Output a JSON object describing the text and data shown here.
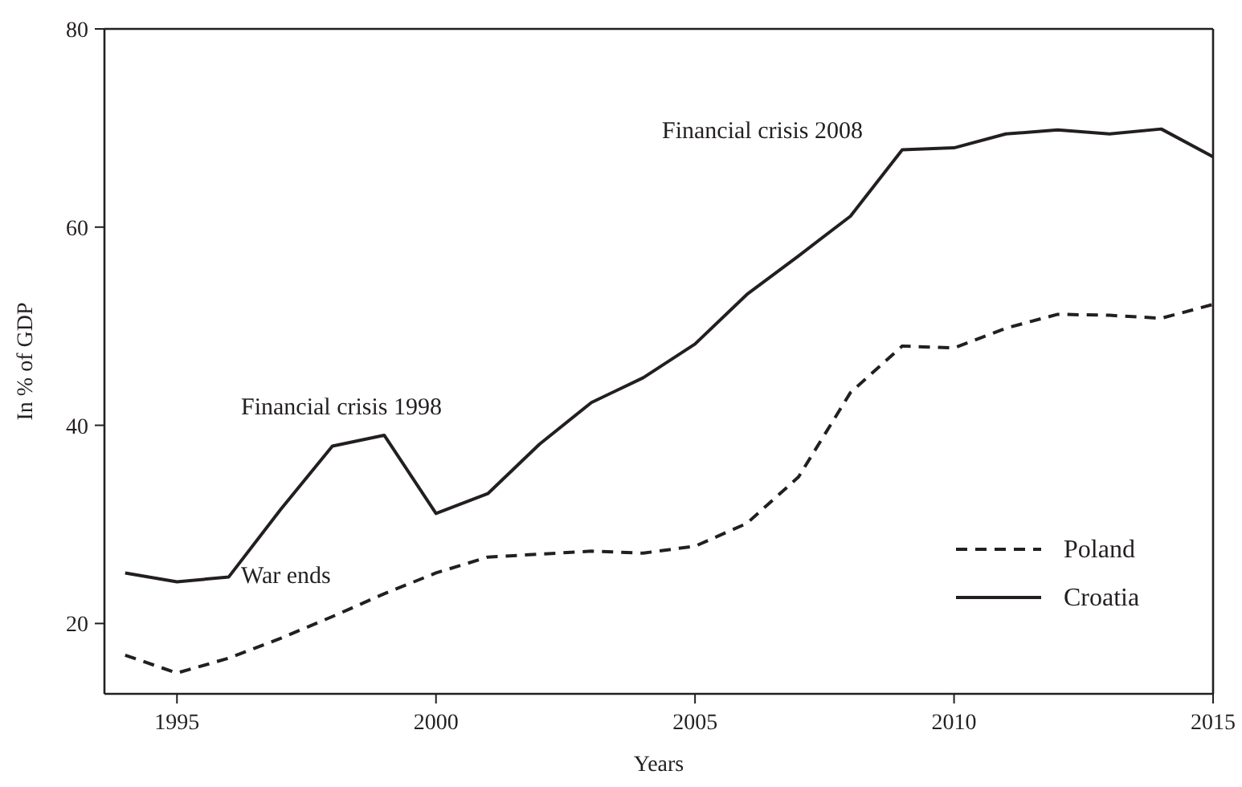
{
  "chart_data": {
    "type": "line",
    "xlabel": "Years",
    "ylabel": "In % of GDP",
    "x": [
      1994,
      1995,
      1996,
      1997,
      1998,
      1999,
      2000,
      2001,
      2002,
      2003,
      2004,
      2005,
      2006,
      2007,
      2008,
      2009,
      2010,
      2011,
      2012,
      2013,
      2014,
      2015
    ],
    "series": [
      {
        "name": "Poland",
        "color": "#231f20",
        "line_style": "dashed",
        "values": [
          16.8,
          15.0,
          16.5,
          18.5,
          20.7,
          23.0,
          25.1,
          26.7,
          27.0,
          27.3,
          27.1,
          27.8,
          30.1,
          34.8,
          43.3,
          48.0,
          47.8,
          49.8,
          51.2,
          51.1,
          50.8,
          52.2
        ]
      },
      {
        "name": "Croatia",
        "color": "#231f20",
        "line_style": "solid",
        "values": [
          25.1,
          24.2,
          24.7,
          31.5,
          37.9,
          39.0,
          31.1,
          33.1,
          38.1,
          42.3,
          44.8,
          48.2,
          53.2,
          57.1,
          61.1,
          67.8,
          68.0,
          69.4,
          69.8,
          69.4,
          69.9,
          67.1
        ]
      }
    ],
    "xlim": [
      1993.6,
      2015
    ],
    "xticks": [
      1995,
      2000,
      2005,
      2010,
      2015
    ],
    "ylim": [
      12.9,
      80
    ],
    "yticks": [
      20,
      40,
      60,
      80
    ],
    "annotations": [
      "Financial crisis 1998",
      "War ends",
      "Financial crisis 2008"
    ],
    "legend": "bottom right",
    "grid": false,
    "marker": "none"
  }
}
